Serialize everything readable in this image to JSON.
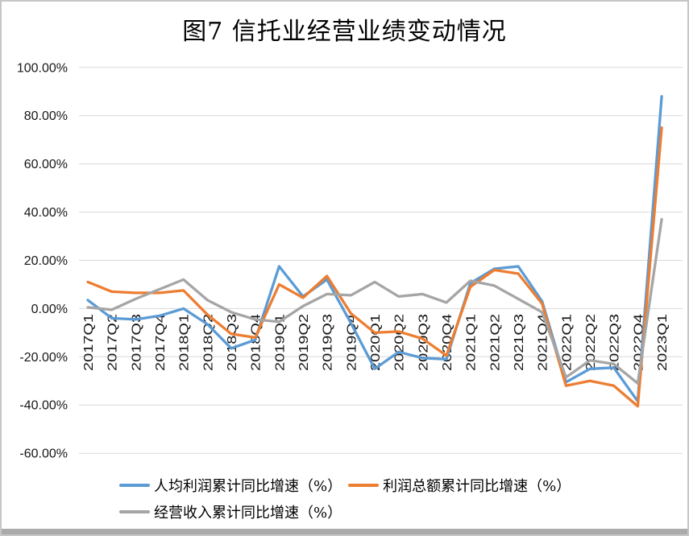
{
  "title": "图7 信托业经营业绩变动情况",
  "chart_data": {
    "type": "line",
    "categories": [
      "2017Q1",
      "2017Q2",
      "2017Q3",
      "2017Q4",
      "2018Q1",
      "2018Q2",
      "2018Q3",
      "2018Q4",
      "2019Q1",
      "2019Q2",
      "2019Q3",
      "2019Q4",
      "2020Q1",
      "2020Q2",
      "2020Q3",
      "2020Q4",
      "2021Q1",
      "2021Q2",
      "2021Q3",
      "2021Q4",
      "2022Q1",
      "2022Q2",
      "2022Q3",
      "2022Q4",
      "2023Q1"
    ],
    "series": [
      {
        "name": "人均利润累计同比增速（%）",
        "color": "#5B9BD5",
        "values": [
          3.5,
          -4,
          -4.5,
          -3,
          0,
          -6.5,
          -16.5,
          -13,
          17.5,
          5,
          12,
          -6,
          -25,
          -18,
          -20.5,
          -21,
          10.5,
          16.5,
          17.5,
          3,
          -30.5,
          -25,
          -24.5,
          -38.5,
          88
        ]
      },
      {
        "name": "利润总额累计同比增速（%）",
        "color": "#ED7D31",
        "values": [
          11,
          7,
          6.5,
          6.5,
          7.5,
          -2.5,
          -10.5,
          -12,
          10,
          4.5,
          13.5,
          -2,
          -10,
          -9.5,
          -12.5,
          -19.5,
          9,
          16,
          14.5,
          2,
          -32,
          -30,
          -32,
          -40.5,
          75
        ]
      },
      {
        "name": "经营收入累计同比增速（%）",
        "color": "#A5A5A5",
        "values": [
          0.5,
          -0.5,
          4,
          8,
          12,
          3.5,
          -1.5,
          -4.5,
          -5.5,
          1,
          6,
          5.5,
          11,
          5,
          6,
          2.5,
          11.5,
          9.5,
          4,
          -1.5,
          -28.5,
          -21.5,
          -23,
          -31,
          37
        ]
      }
    ],
    "y_axis": {
      "ticks": [
        "100.00%",
        "80.00%",
        "60.00%",
        "40.00%",
        "20.00%",
        "0.00%",
        "-20.00%",
        "-40.00%",
        "-60.00%"
      ],
      "max": 100,
      "min": -60,
      "step": 20
    },
    "grid": true,
    "legend_position": "bottom-left",
    "gridline_color": "#D9D9D9"
  }
}
